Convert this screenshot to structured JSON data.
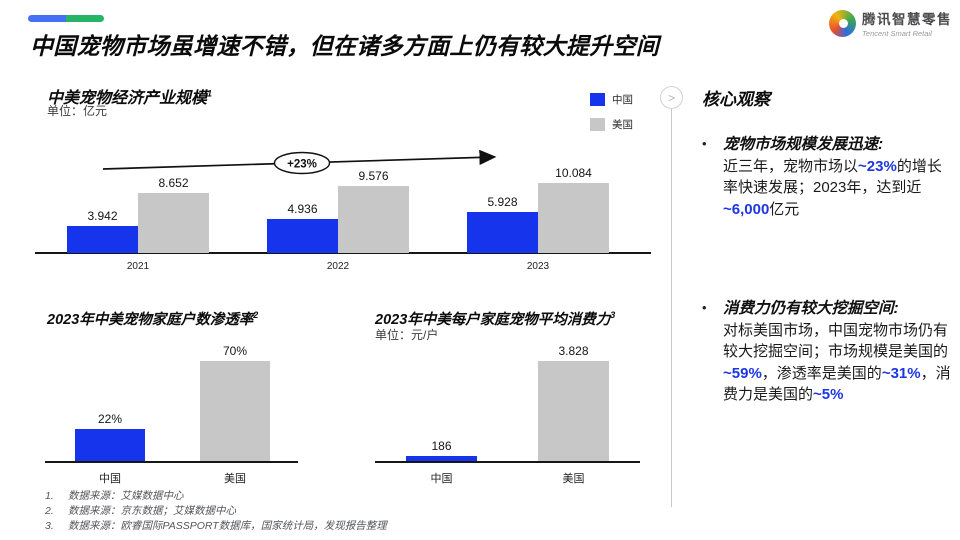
{
  "accent": {
    "bar_blue": "#1534EB",
    "bar_gray": "#C7C7C7",
    "text_blue": "#1D36E4",
    "pill_blue": "#4470F4",
    "pill_green": "#26B467",
    "axis_black": "#161616"
  },
  "header": {
    "title": "中国宠物市场虽增速不错，但在诸多方面上仍有较大提升空间",
    "logo": {
      "name_cn": "腾讯智慧零售",
      "name_en": "Tencent Smart Retail"
    }
  },
  "legend": [
    {
      "label": "中国",
      "color": "#1534EB"
    },
    {
      "label": "美国",
      "color": "#C7C7C7"
    }
  ],
  "divider": {
    "chevron": ">"
  },
  "chart_data": [
    {
      "id": "pet-industry-scale",
      "type": "bar",
      "title": "中美宠物经济产业规模",
      "footnote_ref": "1",
      "unit": "单位：亿元",
      "categories": [
        "2021",
        "2022",
        "2023"
      ],
      "series": [
        {
          "name": "中国",
          "color": "#1534EB",
          "values": [
            3.942,
            4.936,
            5.928
          ],
          "labels": [
            "3.942",
            "4.936",
            "5.928"
          ]
        },
        {
          "name": "美国",
          "color": "#C7C7C7",
          "values": [
            8.652,
            9.576,
            10.084
          ],
          "labels": [
            "8.652",
            "9.576",
            "10.084"
          ]
        }
      ],
      "annotation": "+23%",
      "legend_position": "top-right",
      "grid": false
    },
    {
      "id": "pet-household-penetration",
      "type": "bar",
      "title": "2023年中美宠物家庭户数渗透率",
      "footnote_ref": "2",
      "categories": [
        "中国",
        "美国"
      ],
      "values": [
        22,
        70
      ],
      "labels": [
        "22%",
        "70%"
      ],
      "colors": [
        "#1534EB",
        "#C7C7C7"
      ],
      "grid": false
    },
    {
      "id": "pet-average-spend",
      "type": "bar",
      "title": "2023年中美每户家庭宠物平均消费力",
      "footnote_ref": "3",
      "unit": "单位：元/户",
      "categories": [
        "中国",
        "美国"
      ],
      "values": [
        186,
        3828
      ],
      "labels": [
        "186",
        "3.828"
      ],
      "colors": [
        "#1534EB",
        "#C7C7C7"
      ],
      "grid": false
    }
  ],
  "observations": {
    "heading": "核心观察",
    "bullets": [
      {
        "marker": "•",
        "title": "宠物市场规模发展迅速:",
        "segments": [
          {
            "t": "近三年，宠物市场以"
          },
          {
            "t": "~23%",
            "hl": true
          },
          {
            "t": "的增长率快速发展；2023年，达到近"
          },
          {
            "t": "~6,000",
            "hl": true
          },
          {
            "t": "亿元"
          }
        ]
      },
      {
        "marker": "•",
        "title": "消费力仍有较大挖掘空间:",
        "segments": [
          {
            "t": "对标美国市场，中国宠物市场仍有较大挖掘空间；市场规模是美国的"
          },
          {
            "t": "~59%",
            "hl": true
          },
          {
            "t": "，渗透率是美国的"
          },
          {
            "t": "~31%",
            "hl": true
          },
          {
            "t": "，消费力是美国的"
          },
          {
            "t": "~5%",
            "hl": true
          }
        ]
      }
    ]
  },
  "footnotes": [
    {
      "num": "1.",
      "text": "数据来源：艾媒数据中心"
    },
    {
      "num": "2.",
      "text": "数据来源：京东数据；艾媒数据中心"
    },
    {
      "num": "3.",
      "text": "数据来源：欧睿国际PASSPORT数据库，国家统计局，发现报告整理"
    }
  ]
}
